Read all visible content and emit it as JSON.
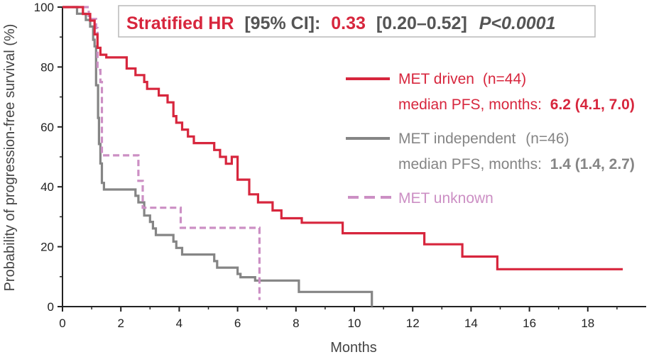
{
  "chart_data": {
    "type": "line",
    "subtype": "kaplan-meier-step",
    "title": "",
    "xlabel": "Months",
    "ylabel": "Probability of progression-free survival (%)",
    "xlim": [
      0,
      20
    ],
    "ylim": [
      0,
      100
    ],
    "x_ticks": [
      "0",
      "2",
      "4",
      "6",
      "8",
      "10",
      "12",
      "14",
      "16",
      "18"
    ],
    "x_tick_values": [
      0,
      2,
      4,
      6,
      8,
      10,
      12,
      14,
      16,
      18
    ],
    "y_ticks": [
      "0",
      "20",
      "40",
      "60",
      "80",
      "100"
    ],
    "y_tick_values": [
      0,
      20,
      40,
      60,
      80,
      100
    ],
    "annotation": {
      "label": "Stratified HR",
      "ci_label": "[95% CI]:",
      "hr_value": "0.33",
      "ci_value": "[0.20–0.52]",
      "p_value": "P<0.0001"
    },
    "series": [
      {
        "name": "MET driven",
        "n_label": "(n=44)",
        "median_label": "median PFS, months:",
        "median_value": "6.2 (4.1, 7.0)",
        "color": "#d7263d",
        "dashed": false,
        "points": [
          [
            0,
            100
          ],
          [
            0.7,
            100
          ],
          [
            0.7,
            97.7
          ],
          [
            0.95,
            97.7
          ],
          [
            0.95,
            95.5
          ],
          [
            1.1,
            95.5
          ],
          [
            1.1,
            90.9
          ],
          [
            1.2,
            90.9
          ],
          [
            1.2,
            86.4
          ],
          [
            1.3,
            86.4
          ],
          [
            1.3,
            84.1
          ],
          [
            1.5,
            84.1
          ],
          [
            1.5,
            83.2
          ],
          [
            2.2,
            83.2
          ],
          [
            2.2,
            79.5
          ],
          [
            2.5,
            79.5
          ],
          [
            2.5,
            77.3
          ],
          [
            2.8,
            77.3
          ],
          [
            2.8,
            75.0
          ],
          [
            2.9,
            75.0
          ],
          [
            2.9,
            72.7
          ],
          [
            3.3,
            72.7
          ],
          [
            3.3,
            70.5
          ],
          [
            3.6,
            70.5
          ],
          [
            3.6,
            68.2
          ],
          [
            3.8,
            68.2
          ],
          [
            3.8,
            63.6
          ],
          [
            3.9,
            63.6
          ],
          [
            3.9,
            61.4
          ],
          [
            4.1,
            61.4
          ],
          [
            4.1,
            59.1
          ],
          [
            4.3,
            59.1
          ],
          [
            4.3,
            56.8
          ],
          [
            4.5,
            56.8
          ],
          [
            4.5,
            54.6
          ],
          [
            5.2,
            54.6
          ],
          [
            5.2,
            52.3
          ],
          [
            5.4,
            52.3
          ],
          [
            5.4,
            50.0
          ],
          [
            5.6,
            50.0
          ],
          [
            5.6,
            47.7
          ],
          [
            5.8,
            47.7
          ],
          [
            5.8,
            50.0
          ],
          [
            6.0,
            50.0
          ],
          [
            6.0,
            42.4
          ],
          [
            6.4,
            42.4
          ],
          [
            6.4,
            37.5
          ],
          [
            6.7,
            37.5
          ],
          [
            6.7,
            34.8
          ],
          [
            7.2,
            34.8
          ],
          [
            7.2,
            32.1
          ],
          [
            7.5,
            32.1
          ],
          [
            7.5,
            29.5
          ],
          [
            8.2,
            29.5
          ],
          [
            8.2,
            28.0
          ],
          [
            9.6,
            28.0
          ],
          [
            9.6,
            24.5
          ],
          [
            12.4,
            24.5
          ],
          [
            12.4,
            20.8
          ],
          [
            13.7,
            20.8
          ],
          [
            13.7,
            16.7
          ],
          [
            14.9,
            16.7
          ],
          [
            14.9,
            12.5
          ],
          [
            19.2,
            12.5
          ]
        ]
      },
      {
        "name": "MET independent",
        "n_label": "(n=46)",
        "median_label": "median PFS, months:",
        "median_value": "1.4 (1.4, 2.7)",
        "color": "#858585",
        "dashed": false,
        "points": [
          [
            0,
            100
          ],
          [
            0.5,
            100
          ],
          [
            0.5,
            97.8
          ],
          [
            0.8,
            97.8
          ],
          [
            0.8,
            95.7
          ],
          [
            0.95,
            95.7
          ],
          [
            0.95,
            93.5
          ],
          [
            1.05,
            93.5
          ],
          [
            1.05,
            89.1
          ],
          [
            1.1,
            89.1
          ],
          [
            1.1,
            86.9
          ],
          [
            1.15,
            86.9
          ],
          [
            1.15,
            73.9
          ],
          [
            1.22,
            73.9
          ],
          [
            1.22,
            63.0
          ],
          [
            1.25,
            63.0
          ],
          [
            1.25,
            54.3
          ],
          [
            1.3,
            54.3
          ],
          [
            1.3,
            47.8
          ],
          [
            1.35,
            47.8
          ],
          [
            1.35,
            41.3
          ],
          [
            1.42,
            41.3
          ],
          [
            1.42,
            39.1
          ],
          [
            2.5,
            39.1
          ],
          [
            2.5,
            37.0
          ],
          [
            2.6,
            37.0
          ],
          [
            2.6,
            34.8
          ],
          [
            2.8,
            34.8
          ],
          [
            2.8,
            30.4
          ],
          [
            3.0,
            30.4
          ],
          [
            3.0,
            28.3
          ],
          [
            3.1,
            28.3
          ],
          [
            3.1,
            26.1
          ],
          [
            3.2,
            26.1
          ],
          [
            3.2,
            23.9
          ],
          [
            3.8,
            23.9
          ],
          [
            3.8,
            21.7
          ],
          [
            3.9,
            21.7
          ],
          [
            3.9,
            19.6
          ],
          [
            4.1,
            19.6
          ],
          [
            4.1,
            17.4
          ],
          [
            5.2,
            17.4
          ],
          [
            5.2,
            15.2
          ],
          [
            5.3,
            15.2
          ],
          [
            5.3,
            13.0
          ],
          [
            6.0,
            13.0
          ],
          [
            6.0,
            10.9
          ],
          [
            6.1,
            10.9
          ],
          [
            6.1,
            9.8
          ],
          [
            6.6,
            9.8
          ],
          [
            6.6,
            8.7
          ],
          [
            8.1,
            8.7
          ],
          [
            8.1,
            4.9
          ],
          [
            10.6,
            4.9
          ],
          [
            10.6,
            0
          ]
        ]
      },
      {
        "name": "MET unknown",
        "color": "#cc8fc4",
        "dashed": true,
        "points": [
          [
            0,
            100
          ],
          [
            0.9,
            100
          ],
          [
            0.9,
            96.0
          ],
          [
            1.15,
            96.0
          ],
          [
            1.15,
            93.0
          ],
          [
            1.2,
            93.0
          ],
          [
            1.2,
            79.0
          ],
          [
            1.3,
            79.0
          ],
          [
            1.3,
            75.0
          ],
          [
            1.35,
            75.0
          ],
          [
            1.35,
            50.5
          ],
          [
            2.6,
            50.5
          ],
          [
            2.6,
            42.0
          ],
          [
            2.75,
            42.0
          ],
          [
            2.75,
            33.0
          ],
          [
            4.05,
            33.0
          ],
          [
            4.05,
            26.3
          ],
          [
            6.75,
            26.3
          ],
          [
            6.75,
            2.2
          ]
        ]
      }
    ]
  }
}
